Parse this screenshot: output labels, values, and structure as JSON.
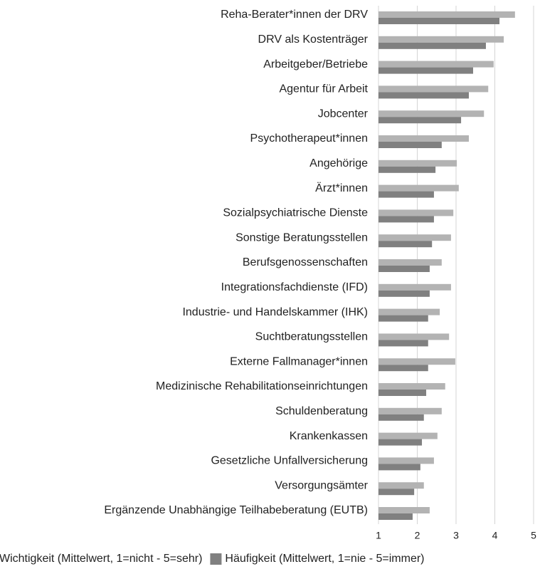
{
  "chart_data": {
    "type": "bar",
    "orientation": "horizontal",
    "categories": [
      "Reha-Berater*innen der DRV",
      "DRV als Kostenträger",
      "Arbeitgeber/Betriebe",
      "Agentur für Arbeit",
      "Jobcenter",
      "Psychotherapeut*innen",
      "Angehörige",
      "Ärzt*innen",
      "Sozialpsychiatrische Dienste",
      "Sonstige Beratungsstellen",
      "Berufsgenossenschaften",
      "Integrationsfachdienste (IFD)",
      "Industrie- und Handelskammer (IHK)",
      "Suchtberatungsstellen",
      "Externe Fallmanager*innen",
      "Medizinische Rehabilitationseinrichtungen",
      "Schuldenberatung",
      "Krankenkassen",
      "Gesetzliche Unfallversicherung",
      "Versorgungsämter",
      "Ergänzende Unabhängige Teilhabeberatung (EUTB)"
    ],
    "series": [
      {
        "name": "Wichtigkeit (Mittelwert, 1=nicht - 5=sehr)",
        "color": "#b3b3b3",
        "values": [
          4.52,
          4.23,
          3.97,
          3.83,
          3.72,
          3.33,
          3.02,
          3.07,
          2.93,
          2.87,
          2.63,
          2.87,
          2.58,
          2.82,
          2.98,
          2.72,
          2.63,
          2.52,
          2.43,
          2.17,
          2.32
        ]
      },
      {
        "name": "Häufigkeit (Mittelwert, 1=nie - 5=immer)",
        "color": "#808080",
        "values": [
          4.12,
          3.77,
          3.44,
          3.33,
          3.13,
          2.63,
          2.47,
          2.43,
          2.43,
          2.38,
          2.32,
          2.32,
          2.28,
          2.28,
          2.28,
          2.23,
          2.17,
          2.12,
          2.08,
          1.92,
          1.88
        ]
      }
    ],
    "xlim": [
      1,
      5
    ],
    "xticks": [
      1,
      2,
      3,
      4,
      5
    ],
    "grid": true,
    "legend": "bottom"
  }
}
